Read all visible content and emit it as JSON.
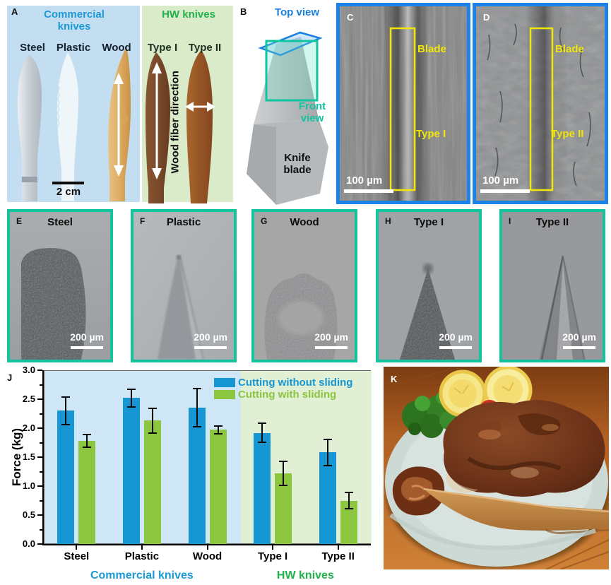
{
  "panelA": {
    "letter": "A",
    "title_commercial": "Commercial knives",
    "title_hw": "HW knives",
    "labels": [
      "Steel",
      "Plastic",
      "Wood",
      "Type I",
      "Type II"
    ],
    "scale_label": "2 cm",
    "fiber_direction": "Wood fiber direction",
    "bg_commercial": "#c3def0",
    "bg_hw": "#d9ebc8",
    "title_commercial_color": "#1b9ad6",
    "title_hw_color": "#21b24c"
  },
  "panelB": {
    "letter": "B",
    "top_view": "Top view",
    "front_view": "Front view",
    "knife_blade": "Knife blade"
  },
  "panelC": {
    "letter": "C",
    "blade_label": "Blade",
    "type_label": "Type I",
    "scale_label": "100 µm"
  },
  "panelD": {
    "letter": "D",
    "blade_label": "Blade",
    "type_label": "Type II",
    "scale_label": "100 µm"
  },
  "micrographs": [
    {
      "letter": "E",
      "name": "Steel",
      "scale_label": "200 µm"
    },
    {
      "letter": "F",
      "name": "Plastic",
      "scale_label": "200 µm"
    },
    {
      "letter": "G",
      "name": "Wood",
      "scale_label": "200 µm"
    },
    {
      "letter": "H",
      "name": "Type I",
      "scale_label": "200 µm"
    },
    {
      "letter": "I",
      "name": "Type II",
      "scale_label": "200 µm"
    }
  ],
  "panelJ": {
    "letter": "J"
  },
  "panelK": {
    "letter": "K"
  },
  "chart_data": {
    "type": "bar",
    "title": "",
    "xlabel": "",
    "ylabel": "Force (kg)",
    "ylim": [
      0.0,
      3.0
    ],
    "yticks": [
      0.0,
      0.5,
      1.0,
      1.5,
      2.0,
      2.5,
      3.0
    ],
    "minor_tick_step": 0.25,
    "grid": false,
    "legend_position": "top-right",
    "categories": [
      "Steel",
      "Plastic",
      "Wood",
      "Type I",
      "Type II"
    ],
    "series": [
      {
        "name": "Cutting without sliding",
        "color": "#1697d4",
        "values": [
          2.3,
          2.52,
          2.35,
          1.92,
          1.58
        ],
        "errors": [
          0.24,
          0.15,
          0.33,
          0.16,
          0.23
        ]
      },
      {
        "name": "Cutting with sliding",
        "color": "#8cc63f",
        "values": [
          1.78,
          2.13,
          1.97,
          1.22,
          0.75
        ],
        "errors": [
          0.11,
          0.21,
          0.07,
          0.21,
          0.14
        ]
      }
    ],
    "regions": [
      {
        "label": "Commercial knives",
        "label_color": "#1b9ad6",
        "bg_color": "#cfe6f7",
        "span": [
          0,
          3
        ]
      },
      {
        "label": "HW knives",
        "label_color": "#21b24c",
        "bg_color": "#e1efd4",
        "span": [
          3,
          5
        ]
      }
    ]
  }
}
